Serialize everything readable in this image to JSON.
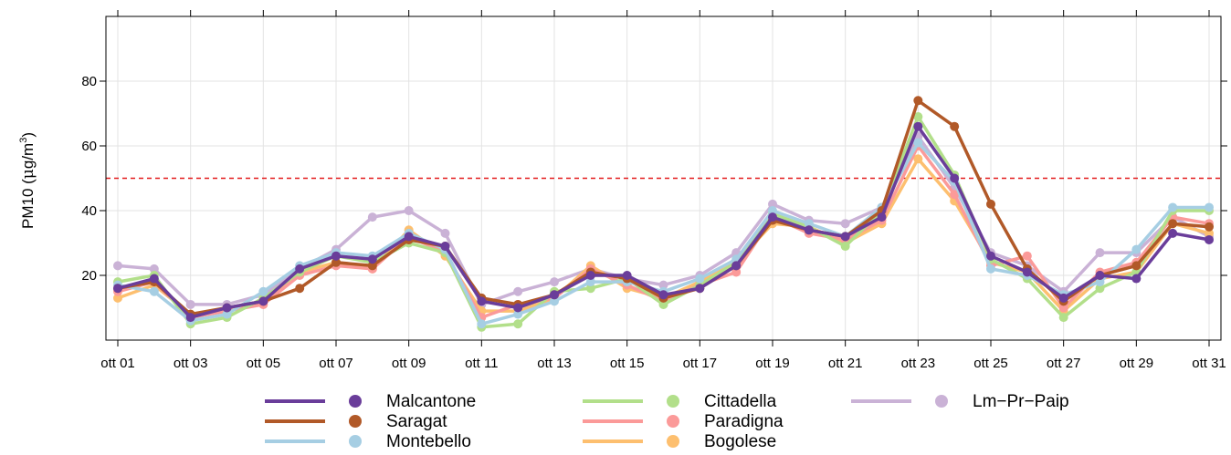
{
  "chart_data": {
    "type": "line",
    "ylabel_main": "PM10 (",
    "ylabel_mu": "μ",
    "ylabel_unit": "g/m",
    "ylabel_sup": "3",
    "ylabel_close": ")",
    "ylim": [
      0,
      100
    ],
    "yticks": [
      20,
      40,
      60,
      80
    ],
    "x": [
      "ott 01",
      "ott 02",
      "ott 03",
      "ott 04",
      "ott 05",
      "ott 06",
      "ott 07",
      "ott 08",
      "ott 09",
      "ott 10",
      "ott 11",
      "ott 12",
      "ott 13",
      "ott 14",
      "ott 15",
      "ott 16",
      "ott 17",
      "ott 18",
      "ott 19",
      "ott 20",
      "ott 21",
      "ott 22",
      "ott 23",
      "ott 24",
      "ott 25",
      "ott 26",
      "ott 27",
      "ott 28",
      "ott 29",
      "ott 30",
      "ott 31"
    ],
    "xtick_labels": [
      "ott 01",
      "ott 03",
      "ott 05",
      "ott 07",
      "ott 09",
      "ott 11",
      "ott 13",
      "ott 15",
      "ott 17",
      "ott 19",
      "ott 21",
      "ott 23",
      "ott 25",
      "ott 27",
      "ott 29",
      "ott 31"
    ],
    "threshold": 50,
    "threshold_color": "#e31a1c",
    "grid": true,
    "legend_position": "bottom",
    "series": [
      {
        "name": "Malcantone",
        "color": "#6a3d9a",
        "values": [
          16,
          19,
          7,
          10,
          12,
          22,
          26,
          25,
          32,
          29,
          12,
          10,
          14,
          20,
          20,
          14,
          16,
          23,
          38,
          34,
          32,
          38,
          66,
          50,
          26,
          21,
          13,
          20,
          19,
          33,
          31
        ]
      },
      {
        "name": "Saragat",
        "color": "#b15928",
        "values": [
          16,
          18,
          8,
          10,
          12,
          16,
          24,
          23,
          31,
          29,
          13,
          11,
          14,
          21,
          19,
          13,
          16,
          23,
          37,
          34,
          32,
          40,
          74,
          66,
          42,
          22,
          12,
          20,
          23,
          36,
          35
        ]
      },
      {
        "name": "Montebello",
        "color": "#a6cee3",
        "values": [
          17,
          15,
          6,
          8,
          15,
          23,
          27,
          26,
          33,
          28,
          5,
          8,
          12,
          18,
          18,
          15,
          19,
          25,
          40,
          36,
          32,
          41,
          61,
          49,
          22,
          20,
          14,
          18,
          28,
          41,
          41
        ]
      },
      {
        "name": "Cittadella",
        "color": "#b2df8a",
        "values": [
          18,
          20,
          5,
          7,
          13,
          21,
          26,
          24,
          30,
          27,
          4,
          5,
          15,
          16,
          19,
          11,
          17,
          24,
          39,
          35,
          29,
          40,
          69,
          51,
          25,
          19,
          7,
          16,
          21,
          40,
          40
        ]
      },
      {
        "name": "Paradigna",
        "color": "#fb9a99",
        "values": [
          15,
          18,
          7,
          9,
          11,
          20,
          23,
          22,
          32,
          27,
          7,
          11,
          13,
          22,
          17,
          12,
          17,
          21,
          38,
          33,
          31,
          37,
          60,
          45,
          23,
          26,
          10,
          21,
          24,
          38,
          36
        ]
      },
      {
        "name": "Bogolese",
        "color": "#fdbf6f",
        "values": [
          13,
          17,
          8,
          9,
          12,
          21,
          24,
          22,
          34,
          26,
          9,
          9,
          13,
          23,
          16,
          13,
          18,
          24,
          36,
          35,
          30,
          36,
          56,
          43,
          24,
          21,
          9,
          19,
          21,
          36,
          33
        ]
      },
      {
        "name": "Lm−Pr−Paip",
        "color": "#cab2d6",
        "values": [
          23,
          22,
          11,
          11,
          14,
          22,
          28,
          38,
          40,
          33,
          11,
          15,
          18,
          22,
          19,
          17,
          20,
          27,
          42,
          37,
          36,
          41,
          63,
          47,
          27,
          23,
          15,
          27,
          27,
          38,
          32
        ]
      }
    ]
  }
}
